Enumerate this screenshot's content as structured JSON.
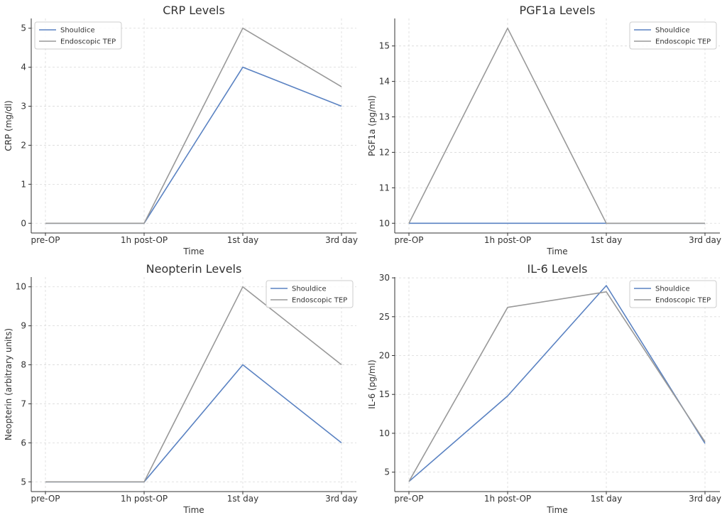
{
  "chart_data": [
    {
      "type": "line",
      "title": "CRP Levels",
      "xlabel": "Time",
      "ylabel": "CRP (mg/dl)",
      "categories": [
        "pre-OP",
        "1h post-OP",
        "1st day",
        "3rd day"
      ],
      "ylim": [
        -0.25,
        5.25
      ],
      "yticks": [
        0,
        1,
        2,
        3,
        4,
        5
      ],
      "grid": true,
      "legend": "upper-left",
      "series": [
        {
          "name": "Shouldice",
          "color": "#5a82c2",
          "values": [
            0,
            0,
            4,
            3
          ]
        },
        {
          "name": "Endoscopic TEP",
          "color": "#999999",
          "values": [
            0,
            0,
            5,
            3.5
          ]
        }
      ]
    },
    {
      "type": "line",
      "title": "PGF1a Levels",
      "xlabel": "Time",
      "ylabel": "PGF1a (pg/ml)",
      "categories": [
        "pre-OP",
        "1h post-OP",
        "1st day",
        "3rd day"
      ],
      "ylim": [
        9.725,
        15.775
      ],
      "yticks": [
        10,
        11,
        12,
        13,
        14,
        15
      ],
      "grid": true,
      "legend": "upper-right",
      "series": [
        {
          "name": "Shouldice",
          "color": "#5a82c2",
          "values": [
            10,
            10,
            10,
            10
          ]
        },
        {
          "name": "Endoscopic TEP",
          "color": "#999999",
          "values": [
            10,
            15.5,
            10,
            10
          ]
        }
      ]
    },
    {
      "type": "line",
      "title": "Neopterin Levels",
      "xlabel": "Time",
      "ylabel": "Neopterin (arbitrary units)",
      "categories": [
        "pre-OP",
        "1h post-OP",
        "1st day",
        "3rd day"
      ],
      "ylim": [
        4.75,
        10.25
      ],
      "yticks": [
        5,
        6,
        7,
        8,
        9,
        10
      ],
      "grid": true,
      "legend": "upper-right",
      "series": [
        {
          "name": "Shouldice",
          "color": "#5a82c2",
          "values": [
            5,
            5,
            8,
            6
          ]
        },
        {
          "name": "Endoscopic TEP",
          "color": "#999999",
          "values": [
            5,
            5,
            10,
            8
          ]
        }
      ]
    },
    {
      "type": "line",
      "title": "IL-6 Levels",
      "xlabel": "Time",
      "ylabel": "IL-6 (pg/ml)",
      "categories": [
        "pre-OP",
        "1h post-OP",
        "1st day",
        "3rd day"
      ],
      "ylim": [
        2.5,
        30.1
      ],
      "yticks": [
        5,
        10,
        15,
        20,
        25,
        30
      ],
      "grid": true,
      "legend": "upper-right",
      "series": [
        {
          "name": "Shouldice",
          "color": "#5a82c2",
          "values": [
            3.8,
            14.8,
            29.0,
            8.7
          ]
        },
        {
          "name": "Endoscopic TEP",
          "color": "#999999",
          "values": [
            3.8,
            26.2,
            28.2,
            8.9
          ]
        }
      ]
    }
  ]
}
